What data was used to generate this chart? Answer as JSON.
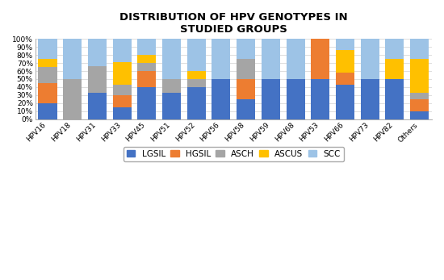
{
  "title": "DISTRIBUTION OF HPV GENOTYPES IN\nSTUDIED GROUPS",
  "categories": [
    "HPV16",
    "HPV18",
    "HPV31",
    "HPV33",
    "HPV45",
    "HPV51",
    "HPV52",
    "HPV56",
    "HPV58",
    "HPV59",
    "HPV68",
    "HPV53",
    "HPV66",
    "HPV73",
    "HPV82",
    "Others"
  ],
  "series": {
    "LGSIL": [
      20,
      0,
      33,
      15,
      40,
      33,
      40,
      50,
      25,
      50,
      50,
      50,
      43,
      50,
      50,
      10
    ],
    "HGSIL": [
      25,
      0,
      0,
      15,
      20,
      0,
      0,
      0,
      25,
      0,
      0,
      50,
      15,
      0,
      0,
      15
    ],
    "ASCH": [
      20,
      50,
      33,
      13,
      10,
      17,
      10,
      0,
      25,
      0,
      0,
      0,
      0,
      0,
      0,
      8
    ],
    "ASCUS": [
      10,
      0,
      0,
      28,
      10,
      0,
      10,
      0,
      0,
      0,
      0,
      0,
      28,
      0,
      25,
      42
    ],
    "SCC": [
      25,
      50,
      34,
      29,
      20,
      50,
      40,
      50,
      25,
      50,
      50,
      0,
      14,
      50,
      25,
      25
    ]
  },
  "colors": {
    "LGSIL": "#4472C4",
    "HGSIL": "#ED7D31",
    "ASCH": "#A5A5A5",
    "ASCUS": "#FFC000",
    "SCC": "#9DC3E6"
  },
  "ylim": [
    0,
    100
  ],
  "yticks": [
    0,
    10,
    20,
    30,
    40,
    50,
    60,
    70,
    80,
    90,
    100
  ],
  "ytick_labels": [
    "0%",
    "10%",
    "20%",
    "30%",
    "40%",
    "50%",
    "60%",
    "70%",
    "80%",
    "90%",
    "100%"
  ],
  "background_color": "#ffffff",
  "plot_bg_color": "#ffffff",
  "title_fontsize": 9.5,
  "axis_fontsize": 6.5,
  "legend_fontsize": 7.5,
  "bar_width": 0.75
}
